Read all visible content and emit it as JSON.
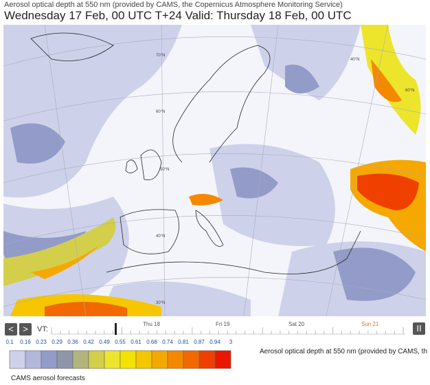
{
  "header": {
    "subtitle": "Aerosol optical depth at 550 nm (provided by CAMS, the Copernicus Atmosphere Monitoring Service)",
    "title": "Wednesday 17 Feb, 00 UTC T+24 Valid: Thursday 18 Feb, 00 UTC"
  },
  "map": {
    "latitude_labels": [
      "70°N",
      "60°N",
      "50°N",
      "40°N",
      "30°N",
      "60°N",
      "40°N"
    ]
  },
  "controls": {
    "prev": "<",
    "next": ">",
    "vt_label": "VT:",
    "days": [
      "Thu 18",
      "Fri 19",
      "Sat 20",
      "Sun 21"
    ],
    "pause": "II"
  },
  "legend": {
    "values": [
      "0.1",
      "0.16",
      "0.23",
      "0.29",
      "0.36",
      "0.42",
      "0.49",
      "0.55",
      "0.61",
      "0.68",
      "0.74",
      "0.81",
      "0.87",
      "0.94",
      "3"
    ],
    "colors": [
      "#cdd2ea",
      "#b2b8dc",
      "#939bc8",
      "#8f96a9",
      "#b3b47c",
      "#d4cf4a",
      "#ede52c",
      "#f4e300",
      "#f6c600",
      "#f5a800",
      "#f48900",
      "#f26900",
      "#ef4000",
      "#ea1600"
    ],
    "caption": "Aerosol optical depth at 550 nm (provided by CAMS, th"
  },
  "footer": {
    "caption": "CAMS aerosol forecasts"
  }
}
